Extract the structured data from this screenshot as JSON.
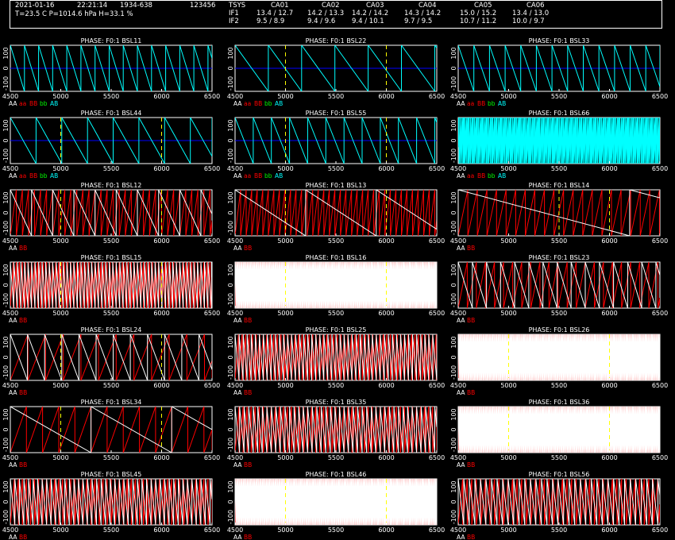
{
  "header": {
    "date": "2021-01-16",
    "time": "22:21:14",
    "source": "1934-638",
    "scan": "123456",
    "weather": "T=23.5 C P=1014.6 hPa H=33.1 %",
    "tsys_label": "TSYS",
    "if1_label": "IF1",
    "if2_label": "IF2",
    "antennas": [
      {
        "name": "CA01",
        "if1": "13.4 / 12.7",
        "if2": "9.5 / 8.9"
      },
      {
        "name": "CA02",
        "if1": "14.2 / 13.3",
        "if2": "9.4 / 9.6"
      },
      {
        "name": "CA03",
        "if1": "14.2 / 14.2",
        "if2": "9.4 / 10.1"
      },
      {
        "name": "CA04",
        "if1": "14.3 / 14.2",
        "if2": "9.7 / 9.5"
      },
      {
        "name": "CA05",
        "if1": "15.0 / 15.2",
        "if2": "10.7 / 11.2"
      },
      {
        "name": "CA06",
        "if1": "13.4 / 13.0",
        "if2": "10.0 / 9.7"
      }
    ]
  },
  "colors": {
    "AA": "#ffffff",
    "BB": "#ff0000",
    "aa": "#ff0000",
    "bb": "#00ff00",
    "AB": "#00ffff",
    "ab": "#0000ff",
    "marker": "#ffff00"
  },
  "chart_data": {
    "type": "line",
    "x_ticks": [
      "4500",
      "5000",
      "5500",
      "6000",
      "6500"
    ],
    "y_ticks": [
      "100",
      "0",
      "-100"
    ],
    "xlim": [
      4500,
      6500
    ],
    "ylim": [
      -180,
      180
    ],
    "panels": [
      {
        "title": "PHASE: F0:1 BSL11",
        "legend": [
          "AA",
          "aa",
          "BB",
          "bb",
          "AB"
        ],
        "style": "cross",
        "period": 140,
        "dense": false,
        "markers": []
      },
      {
        "title": "PHASE: F0:1 BSL22",
        "legend": [
          "AA",
          "aa",
          "BB",
          "bb",
          "AB"
        ],
        "style": "cross",
        "period": 330,
        "dense": false,
        "markers": [
          5000,
          6000
        ]
      },
      {
        "title": "PHASE: F0:1 BSL33",
        "legend": [
          "AA",
          "aa",
          "BB",
          "bb",
          "AB"
        ],
        "style": "cross",
        "period": 155,
        "dense": false,
        "markers": []
      },
      {
        "title": "PHASE: F0:1 BSL44",
        "legend": [
          "AA",
          "aa",
          "BB",
          "bb",
          "AB"
        ],
        "style": "cross",
        "period": 255,
        "dense": false,
        "markers": [
          5000,
          6000
        ]
      },
      {
        "title": "PHASE: F0:1 BSL55",
        "legend": [
          "AA",
          "aa",
          "BB",
          "bb",
          "AB"
        ],
        "style": "cross",
        "period": 180,
        "dense": false,
        "markers": [
          5000,
          6000
        ]
      },
      {
        "title": "PHASE: F0:1 BSL66",
        "legend": [
          "AA",
          "aa",
          "BB",
          "bb",
          "AB"
        ],
        "style": "cross",
        "period": 20,
        "dense": true,
        "markers": []
      },
      {
        "title": "PHASE: F0:1 BSL12",
        "legend": [
          "AA",
          "BB"
        ],
        "style": "baseline",
        "period": 210,
        "period2": 60,
        "dense": false,
        "markers": [
          5000,
          6000
        ]
      },
      {
        "title": "PHASE: F0:1 BSL13",
        "legend": [
          "AA",
          "BB"
        ],
        "style": "baseline",
        "period": 700,
        "period2": 55,
        "dense": false,
        "markers": [
          5000,
          6000
        ]
      },
      {
        "title": "PHASE: F0:1 BSL14",
        "legend": [
          "AA",
          "BB"
        ],
        "style": "baseline",
        "period": 1700,
        "period2": 95,
        "dense": false,
        "markers": [
          5500,
          6000
        ]
      },
      {
        "title": "PHASE: F0:1 BSL15",
        "legend": [
          "AA",
          "BB"
        ],
        "style": "baseline",
        "period": 35,
        "period2": 30,
        "dense": true,
        "markers": [
          5000,
          6000
        ]
      },
      {
        "title": "PHASE: F0:1 BSL16",
        "legend": [
          "AA",
          "BB"
        ],
        "style": "baseline",
        "period": 9,
        "period2": 7,
        "dense": true,
        "markers": [
          5000,
          6000
        ]
      },
      {
        "title": "PHASE: F0:1 BSL23",
        "legend": [
          "AA",
          "BB"
        ],
        "style": "baseline",
        "period": 140,
        "period2": 90,
        "dense": false,
        "markers": []
      },
      {
        "title": "PHASE: F0:1 BSL24",
        "legend": [
          "AA",
          "BB"
        ],
        "style": "baseline",
        "period": 170,
        "period2": 175,
        "dense": false,
        "markers": [
          5000,
          6000
        ]
      },
      {
        "title": "PHASE: F0:1 BSL25",
        "legend": [
          "AA",
          "BB"
        ],
        "style": "baseline",
        "period": 40,
        "period2": 35,
        "dense": true,
        "markers": []
      },
      {
        "title": "PHASE: F0:1 BSL26",
        "legend": [
          "AA",
          "BB"
        ],
        "style": "baseline",
        "period": 9,
        "period2": 7,
        "dense": true,
        "markers": [
          5000,
          6000
        ]
      },
      {
        "title": "PHASE: F0:1 BSL34",
        "legend": [
          "AA",
          "BB"
        ],
        "style": "baseline",
        "period": 800,
        "period2": 160,
        "dense": false,
        "markers": [
          5000,
          6000
        ]
      },
      {
        "title": "PHASE: F0:1 BSL35",
        "legend": [
          "AA",
          "BB"
        ],
        "style": "baseline",
        "period": 45,
        "period2": 40,
        "dense": true,
        "markers": []
      },
      {
        "title": "PHASE: F0:1 BSL36",
        "legend": [
          "AA",
          "BB"
        ],
        "style": "baseline",
        "period": 9,
        "period2": 7,
        "dense": true,
        "markers": [
          5000,
          6000
        ]
      },
      {
        "title": "PHASE: F0:1 BSL45",
        "legend": [
          "AA",
          "BB"
        ],
        "style": "baseline",
        "period": 45,
        "period2": 40,
        "dense": true,
        "markers": []
      },
      {
        "title": "PHASE: F0:1 BSL46",
        "legend": [
          "AA",
          "BB"
        ],
        "style": "baseline",
        "period": 9,
        "period2": 7,
        "dense": true,
        "markers": [
          5000,
          6000
        ]
      },
      {
        "title": "PHASE: F0:1 BSL56",
        "legend": [
          "AA",
          "BB"
        ],
        "style": "baseline",
        "period": 55,
        "period2": 45,
        "dense": true,
        "markers": []
      }
    ]
  }
}
